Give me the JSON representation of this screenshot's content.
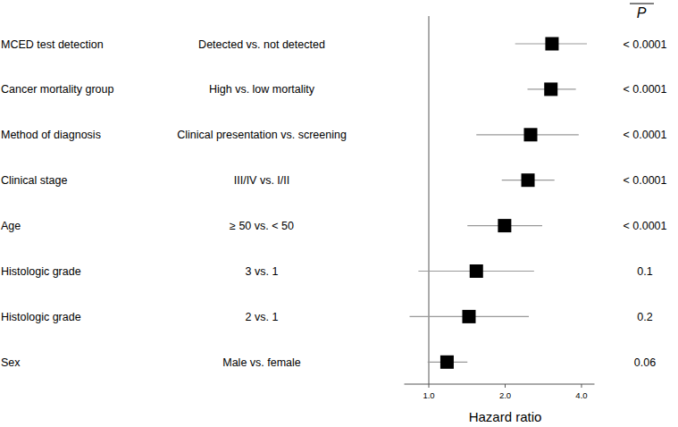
{
  "chart_data": {
    "type": "forest",
    "categories": [
      "MCED test detection",
      "Cancer mortality group",
      "Method of diagnosis",
      "Clinical stage",
      "Age",
      "Histologic grade",
      "Histologic grade",
      "Sex"
    ],
    "comparisons": [
      "Detected vs. not detected",
      "High vs. low mortality",
      "Clinical presentation vs. screening",
      "III/IV vs. I/II",
      "≥ 50 vs. < 50",
      "3 vs. 1",
      "2 vs. 1",
      "Male vs. female"
    ],
    "values": [
      3.06,
      3.03,
      2.52,
      2.46,
      1.99,
      1.54,
      1.44,
      1.18
    ],
    "ci_low": [
      2.19,
      2.45,
      1.54,
      1.94,
      1.42,
      0.91,
      0.84,
      0.99
    ],
    "ci_high": [
      4.2,
      3.8,
      3.9,
      3.13,
      2.8,
      2.6,
      2.48,
      1.42
    ],
    "p_header": "P",
    "p_values": [
      "< 0.0001",
      "< 0.0001",
      "< 0.0001",
      "< 0.0001",
      "< 0.0001",
      "0.1",
      "0.2",
      "0.06"
    ],
    "x_label": "Hazard ratio",
    "log": "x",
    "reference": 1,
    "xlim": [
      0.8,
      4.5
    ],
    "xticks": [
      {
        "value": 1,
        "label": "1.0"
      },
      {
        "value": 2,
        "label": "2.0"
      },
      {
        "value": 4,
        "label": "4.0"
      }
    ],
    "color": "#000000"
  }
}
